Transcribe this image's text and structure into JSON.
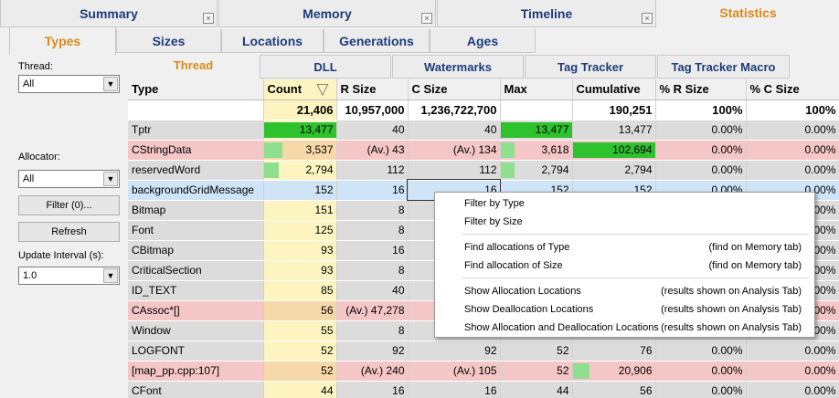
{
  "top_tabs": [
    {
      "label": "Summary"
    },
    {
      "label": "Memory"
    },
    {
      "label": "Timeline"
    },
    {
      "label": "Statistics"
    }
  ],
  "close_glyph": "×",
  "sub_tabs": [
    {
      "label": "Types"
    },
    {
      "label": "Sizes"
    },
    {
      "label": "Locations"
    },
    {
      "label": "Generations"
    },
    {
      "label": "Ages"
    }
  ],
  "panel_tabs": [
    {
      "label": "Thread"
    },
    {
      "label": "DLL"
    },
    {
      "label": "Watermarks"
    },
    {
      "label": "Tag Tracker"
    },
    {
      "label": "Tag Tracker Macro"
    }
  ],
  "left": {
    "thread_label": "Thread:",
    "thread_value": "All",
    "allocator_label": "Allocator:",
    "allocator_value": "All",
    "filter_button": "Filter (0)...",
    "refresh_button": "Refresh",
    "interval_label": "Update Interval (s):",
    "interval_value": "1.0",
    "dropdown_glyph": "▼"
  },
  "columns": [
    "Type",
    "Count",
    "R Size",
    "C Size",
    "Max",
    "Cumulative",
    "% R Size",
    "% C Size"
  ],
  "sort_glyph": "▽",
  "totals": [
    "",
    "21,406",
    "10,957,000",
    "1,236,722,700",
    "",
    "190,251",
    "100%",
    "100%"
  ],
  "rows": [
    {
      "style": "gray",
      "cells": [
        "Tptr",
        "13,477",
        "40",
        "40",
        "13,477",
        "13,477",
        "0.00%",
        "0.00%"
      ],
      "count_pct": 100,
      "max_pct": 100,
      "cum_pct": 0,
      "light": false
    },
    {
      "style": "pink",
      "cells": [
        "CStringData",
        "3,537",
        "(Av.) 43",
        "(Av.) 134",
        "3,618",
        "102,694",
        "0.00%",
        "0.00%"
      ],
      "count_pct": 26,
      "max_pct": 20,
      "cum_pct": 100,
      "light": true
    },
    {
      "style": "gray",
      "cells": [
        "reservedWord",
        "2,794",
        "112",
        "112",
        "2,794",
        "2,794",
        "0.00%",
        "0.00%"
      ],
      "count_pct": 21,
      "max_pct": 20,
      "cum_pct": 0,
      "light": true
    },
    {
      "style": "sel",
      "cells": [
        "backgroundGridMessage",
        "152",
        "16",
        "16",
        "152",
        "152",
        "0.00%",
        "0.00%"
      ],
      "count_pct": 0,
      "max_pct": 0,
      "cum_pct": 0,
      "light": true
    },
    {
      "style": "gray",
      "cells": [
        "Bitmap",
        "151",
        "8",
        "",
        "",
        "",
        "",
        "0.00%"
      ],
      "count_pct": 0,
      "max_pct": 0,
      "cum_pct": 0,
      "light": true
    },
    {
      "style": "gray",
      "cells": [
        "Font",
        "125",
        "8",
        "",
        "",
        "",
        "",
        "0.00%"
      ],
      "count_pct": 0,
      "max_pct": 0,
      "cum_pct": 0,
      "light": true
    },
    {
      "style": "gray",
      "cells": [
        "CBitmap",
        "93",
        "16",
        "",
        "",
        "",
        "",
        "0.00%"
      ],
      "count_pct": 0,
      "max_pct": 0,
      "cum_pct": 0,
      "light": true
    },
    {
      "style": "gray",
      "cells": [
        "CriticalSection",
        "93",
        "8",
        "",
        "",
        "",
        "",
        "0.00%"
      ],
      "count_pct": 0,
      "max_pct": 0,
      "cum_pct": 0,
      "light": true
    },
    {
      "style": "gray",
      "cells": [
        "ID_TEXT",
        "85",
        "40",
        "",
        "",
        "",
        "",
        "0.00%"
      ],
      "count_pct": 0,
      "max_pct": 0,
      "cum_pct": 0,
      "light": true
    },
    {
      "style": "pink",
      "cells": [
        "CAssoc*[]",
        "56",
        "(Av.) 47,278",
        "",
        "",
        "",
        "",
        "0.00%"
      ],
      "count_pct": 0,
      "max_pct": 0,
      "cum_pct": 0,
      "light": true
    },
    {
      "style": "gray",
      "cells": [
        "Window",
        "55",
        "8",
        "",
        "",
        "",
        "",
        "0.00%"
      ],
      "count_pct": 0,
      "max_pct": 0,
      "cum_pct": 0,
      "light": true
    },
    {
      "style": "gray",
      "cells": [
        "LOGFONT",
        "52",
        "92",
        "92",
        "52",
        "76",
        "0.00%",
        "0.00%"
      ],
      "count_pct": 0,
      "max_pct": 0,
      "cum_pct": 0,
      "light": true
    },
    {
      "style": "pink",
      "cells": [
        "[map_pp.cpp:107]",
        "52",
        "(Av.) 240",
        "(Av.) 105",
        "52",
        "20,906",
        "0.00%",
        "0.00%"
      ],
      "count_pct": 0,
      "max_pct": 0,
      "cum_pct": 20,
      "light": true
    },
    {
      "style": "gray",
      "cells": [
        "CFont",
        "44",
        "16",
        "16",
        "44",
        "56",
        "0.00%",
        "0.00%"
      ],
      "count_pct": 0,
      "max_pct": 0,
      "cum_pct": 0,
      "light": true
    }
  ],
  "context_menu": {
    "groups": [
      [
        {
          "label": "Filter by Type",
          "hint": ""
        },
        {
          "label": "Filter by Size",
          "hint": ""
        }
      ],
      [
        {
          "label": "Find allocations of Type",
          "hint": "(find on Memory tab)"
        },
        {
          "label": "Find allocation of Size",
          "hint": "(find on Memory tab)"
        }
      ],
      [
        {
          "label": "Show Allocation Locations",
          "hint": "(results shown on Analysis Tab)"
        },
        {
          "label": "Show Deallocation Locations",
          "hint": "(results shown on Analysis Tab)"
        },
        {
          "label": "Show Allocation and Deallocation Locations",
          "hint": "(results shown on Analysis Tab)"
        }
      ]
    ]
  },
  "colors": {
    "accent": "#d98a1a",
    "tab_text": "#1e3c7a",
    "bar": "#2ec22e",
    "bar_light": "#8ee08e",
    "pink": "#f5c6c6",
    "count_col": "#fdf4c0"
  }
}
